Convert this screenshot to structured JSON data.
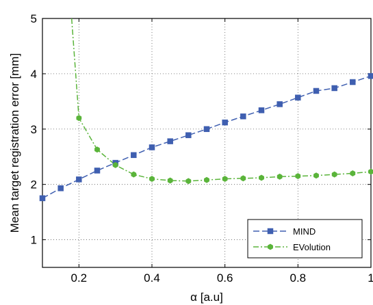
{
  "chart_data": {
    "type": "line",
    "xlabel": "α [a.u]",
    "ylabel": "Mean target registration error [mm]",
    "xlim": [
      0.1,
      1.0
    ],
    "ylim": [
      0.5,
      5.0
    ],
    "xticks": [
      0.2,
      0.4,
      0.6,
      0.8,
      1
    ],
    "xtick_labels": [
      "0.2",
      "0.4",
      "0.6",
      "0.8",
      "1"
    ],
    "yticks": [
      1,
      2,
      3,
      4,
      5
    ],
    "ytick_labels": [
      "1",
      "2",
      "3",
      "4",
      "5"
    ],
    "grid": true,
    "legend_position": "bottom-right",
    "series": [
      {
        "name": "MIND",
        "color": "#3f5fb0",
        "marker": "square",
        "line_style": "dashed",
        "x": [
          0.1,
          0.15,
          0.2,
          0.25,
          0.3,
          0.35,
          0.4,
          0.45,
          0.5,
          0.55,
          0.6,
          0.65,
          0.7,
          0.75,
          0.8,
          0.85,
          0.9,
          0.95,
          1.0
        ],
        "values": [
          1.75,
          1.93,
          2.09,
          2.25,
          2.39,
          2.53,
          2.67,
          2.78,
          2.89,
          3.0,
          3.12,
          3.23,
          3.34,
          3.45,
          3.57,
          3.69,
          3.74,
          3.85,
          3.96
        ]
      },
      {
        "name": "EVolution",
        "color": "#5ab43a",
        "marker": "hexagon",
        "line_style": "dash-dot",
        "x": [
          0.18,
          0.2,
          0.25,
          0.3,
          0.35,
          0.4,
          0.45,
          0.5,
          0.55,
          0.6,
          0.65,
          0.7,
          0.75,
          0.8,
          0.85,
          0.9,
          0.95,
          1.0
        ],
        "marker_x": [
          0.2,
          0.25,
          0.3,
          0.35,
          0.4,
          0.45,
          0.5,
          0.55,
          0.6,
          0.65,
          0.7,
          0.75,
          0.8,
          0.85,
          0.9,
          0.95,
          1.0
        ],
        "values": [
          5.0,
          3.2,
          2.63,
          2.35,
          2.18,
          2.1,
          2.07,
          2.06,
          2.08,
          2.1,
          2.11,
          2.12,
          2.14,
          2.15,
          2.16,
          2.18,
          2.2,
          2.23
        ]
      }
    ]
  }
}
